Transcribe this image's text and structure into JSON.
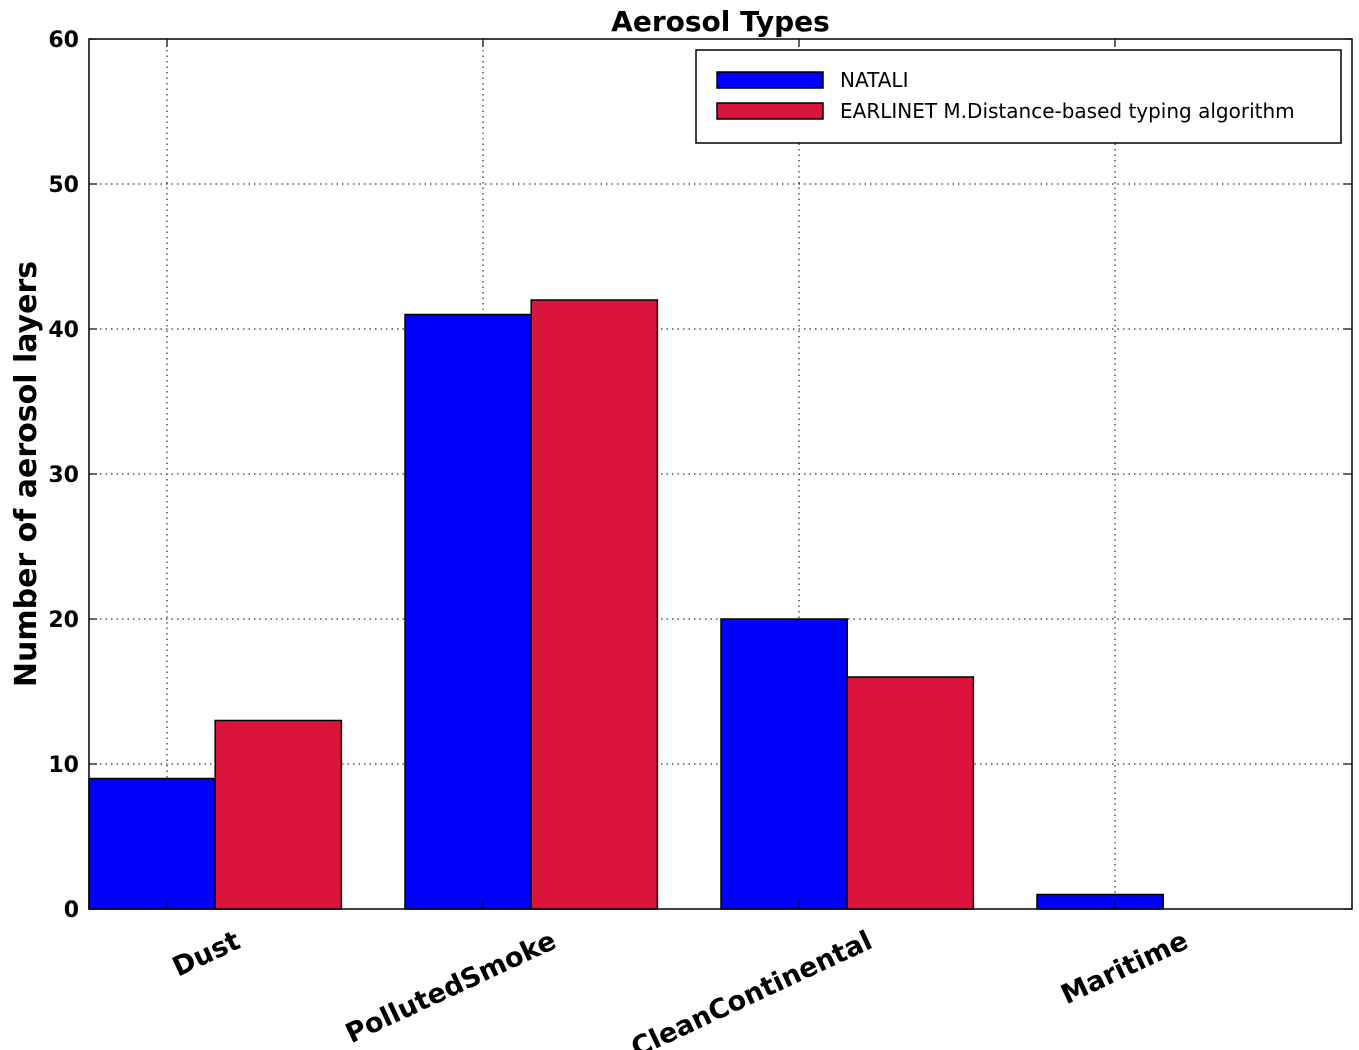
{
  "chart_data": {
    "type": "bar",
    "title": "Aerosol Types",
    "xlabel": "",
    "ylabel": "Number of aerosol layers",
    "categories": [
      "Dust",
      "PollutedSmoke",
      "CleanContinental",
      "Maritime"
    ],
    "series": [
      {
        "name": "NATALI",
        "values": [
          9,
          41,
          20,
          1
        ],
        "color": "#0000ff"
      },
      {
        "name": "EARLINET M.Distance-based typing algorithm",
        "values": [
          13,
          42,
          16,
          0
        ],
        "color": "#dc143c"
      }
    ],
    "ylim": [
      0,
      60
    ],
    "yticks": [
      0,
      10,
      20,
      30,
      40,
      50,
      60
    ],
    "grid": true,
    "legend_position": "top-right"
  }
}
